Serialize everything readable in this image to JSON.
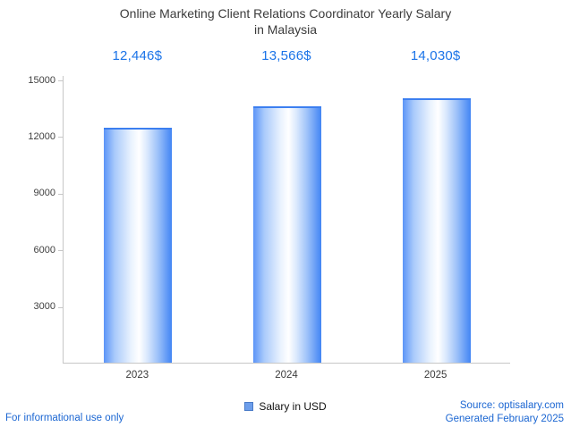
{
  "title": {
    "line1": "Online Marketing Client Relations Coordinator Yearly Salary",
    "line2": "in Malaysia"
  },
  "chart_data": {
    "type": "bar",
    "categories": [
      "2023",
      "2024",
      "2025"
    ],
    "values": [
      12446,
      13566,
      14030
    ],
    "value_labels": [
      "12,446$",
      "13,566$",
      "14,030$"
    ],
    "series_name": "Salary in USD",
    "ylim": [
      0,
      15000
    ],
    "yticks": [
      3000,
      6000,
      9000,
      12000,
      15000
    ],
    "grid": false,
    "legend_position": "bottom",
    "bar_color_left": "#5b94f7",
    "bar_color_mid": "#ffffff",
    "bar_color_right": "#4285f4"
  },
  "legend": {
    "label": "Salary in USD",
    "swatch_color": "#6d9eeb"
  },
  "footer": {
    "disclaimer": "For informational use only",
    "source": "Source: optisalary.com",
    "generated": "Generated February 2025"
  },
  "colors": {
    "accent_blue": "#1a73e8",
    "footer_blue": "#1b66d2",
    "axis_gray": "#c7c7c7",
    "title_gray": "#3b3b3b"
  }
}
